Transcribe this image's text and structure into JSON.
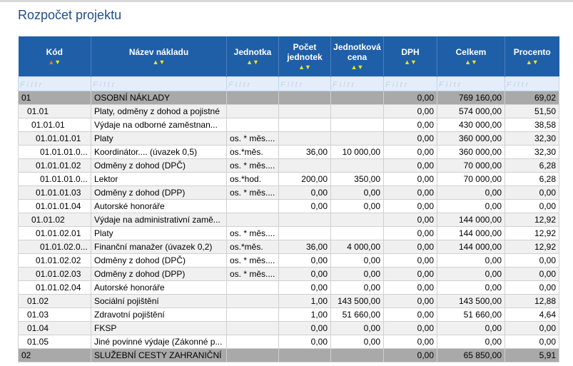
{
  "page": {
    "title": "Rozpočet projektu"
  },
  "columns": [
    {
      "key": "kod",
      "label": "Kód"
    },
    {
      "key": "nazev",
      "label": "Název nákladu"
    },
    {
      "key": "jednotka",
      "label": "Jednotka"
    },
    {
      "key": "pocet",
      "label": "Počet jednotek"
    },
    {
      "key": "cena",
      "label": "Jednotková cena"
    },
    {
      "key": "dph",
      "label": "DPH"
    },
    {
      "key": "celkem",
      "label": "Celkem"
    },
    {
      "key": "procento",
      "label": "Procento"
    }
  ],
  "filter_placeholder": "Filtr",
  "sort_icons": {
    "up": "▲",
    "down": "▼"
  },
  "colors": {
    "header": "#1f5fa8",
    "level0": "#a9a9a9",
    "row_alt": "#f0f0f0",
    "title": "#1f4e8c"
  },
  "rows": [
    {
      "kod": "01",
      "indent": 0,
      "nazev": "OSOBNÍ NÁKLADY",
      "jednotka": "",
      "pocet": "",
      "cena": "",
      "dph": "0,00",
      "celkem": "769 160,00",
      "procento": "69,02"
    },
    {
      "kod": "01.01",
      "indent": 1,
      "nazev": "Platy, odměny z dohod a pojistné",
      "jednotka": "",
      "pocet": "",
      "cena": "",
      "dph": "0,00",
      "celkem": "574 000,00",
      "procento": "51,50"
    },
    {
      "kod": "01.01.01",
      "indent": 2,
      "nazev": "Výdaje na odborné zaměstnan...",
      "jednotka": "",
      "pocet": "",
      "cena": "",
      "dph": "0,00",
      "celkem": "430 000,00",
      "procento": "38,58"
    },
    {
      "kod": "01.01.01.01",
      "indent": 3,
      "nazev": "Platy",
      "jednotka": "os. * měs....",
      "pocet": "",
      "cena": "",
      "dph": "0,00",
      "celkem": "360 000,00",
      "procento": "32,30"
    },
    {
      "kod": "01.01.01.0...",
      "indent": 4,
      "nazev": "Koordinátor.... (úvazek 0,5)",
      "jednotka": "os.*měs.",
      "pocet": "36,00",
      "cena": "10 000,00",
      "dph": "0,00",
      "celkem": "360 000,00",
      "procento": "32,30"
    },
    {
      "kod": "01.01.01.02",
      "indent": 3,
      "nazev": "Odměny z dohod (DPČ)",
      "jednotka": "os. * měs....",
      "pocet": "",
      "cena": "",
      "dph": "0,00",
      "celkem": "70 000,00",
      "procento": "6,28"
    },
    {
      "kod": "01.01.01.0...",
      "indent": 4,
      "nazev": "Lektor",
      "jednotka": "os.*hod.",
      "pocet": "200,00",
      "cena": "350,00",
      "dph": "0,00",
      "celkem": "70 000,00",
      "procento": "6,28"
    },
    {
      "kod": "01.01.01.03",
      "indent": 3,
      "nazev": "Odměny z dohod (DPP)",
      "jednotka": "os. * měs....",
      "pocet": "0,00",
      "cena": "0,00",
      "dph": "0,00",
      "celkem": "0,00",
      "procento": "0,00"
    },
    {
      "kod": "01.01.01.04",
      "indent": 3,
      "nazev": "Autorské honoráře",
      "jednotka": "",
      "pocet": "0,00",
      "cena": "0,00",
      "dph": "0,00",
      "celkem": "0,00",
      "procento": "0,00"
    },
    {
      "kod": "01.01.02",
      "indent": 2,
      "nazev": "Výdaje na administrativní zamě...",
      "jednotka": "",
      "pocet": "",
      "cena": "",
      "dph": "0,00",
      "celkem": "144 000,00",
      "procento": "12,92"
    },
    {
      "kod": "01.01.02.01",
      "indent": 3,
      "nazev": "Platy",
      "jednotka": "os. * měs....",
      "pocet": "",
      "cena": "",
      "dph": "0,00",
      "celkem": "144 000,00",
      "procento": "12,92"
    },
    {
      "kod": "01.01.02.0...",
      "indent": 4,
      "nazev": "Finanční manažer (úvazek 0,2)",
      "jednotka": "os.*měs.",
      "pocet": "36,00",
      "cena": "4 000,00",
      "dph": "0,00",
      "celkem": "144 000,00",
      "procento": "12,92"
    },
    {
      "kod": "01.01.02.02",
      "indent": 3,
      "nazev": "Odměny z dohod (DPČ)",
      "jednotka": "os. * měs....",
      "pocet": "0,00",
      "cena": "0,00",
      "dph": "0,00",
      "celkem": "0,00",
      "procento": "0,00"
    },
    {
      "kod": "01.01.02.03",
      "indent": 3,
      "nazev": "Odměny z dohod (DPP)",
      "jednotka": "os. * měs....",
      "pocet": "0,00",
      "cena": "0,00",
      "dph": "0,00",
      "celkem": "0,00",
      "procento": "0,00"
    },
    {
      "kod": "01.01.02.04",
      "indent": 3,
      "nazev": "Autorské honoráře",
      "jednotka": "",
      "pocet": "0,00",
      "cena": "0,00",
      "dph": "0,00",
      "celkem": "0,00",
      "procento": "0,00"
    },
    {
      "kod": "01.02",
      "indent": 1,
      "nazev": "Sociální pojištění",
      "jednotka": "",
      "pocet": "1,00",
      "cena": "143 500,00",
      "dph": "0,00",
      "celkem": "143 500,00",
      "procento": "12,88"
    },
    {
      "kod": "01.03",
      "indent": 1,
      "nazev": "Zdravotní pojištění",
      "jednotka": "",
      "pocet": "1,00",
      "cena": "51 660,00",
      "dph": "0,00",
      "celkem": "51 660,00",
      "procento": "4,64"
    },
    {
      "kod": "01.04",
      "indent": 1,
      "nazev": "FKSP",
      "jednotka": "",
      "pocet": "0,00",
      "cena": "0,00",
      "dph": "0,00",
      "celkem": "0,00",
      "procento": "0,00"
    },
    {
      "kod": "01.05",
      "indent": 1,
      "nazev": "Jiné povinné výdaje (Zákonné p...",
      "jednotka": "",
      "pocet": "0,00",
      "cena": "0,00",
      "dph": "0,00",
      "celkem": "0,00",
      "procento": "0,00"
    },
    {
      "kod": "02",
      "indent": 0,
      "nazev": "SLUŽEBNÍ CESTY ZAHRANIČNÍ",
      "jednotka": "",
      "pocet": "",
      "cena": "",
      "dph": "0,00",
      "celkem": "65 850,00",
      "procento": "5,91"
    }
  ]
}
